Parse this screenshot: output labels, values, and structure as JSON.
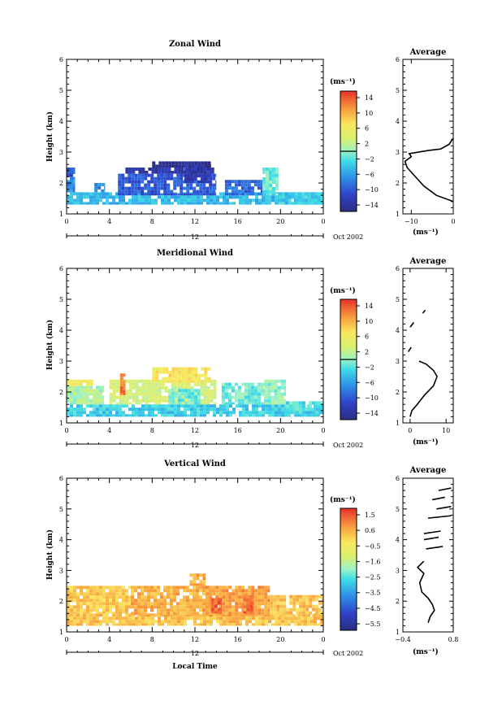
{
  "chart_data": [
    {
      "type": "heatmap",
      "title": "Zonal Wind",
      "ylabel": "Height (km)",
      "xlabel": "",
      "ylim": [
        1,
        6
      ],
      "yticks": [
        "1",
        "2",
        "3",
        "4",
        "5",
        "6"
      ],
      "xlim": [
        0,
        24
      ],
      "xticks": [
        "0",
        "4",
        "8",
        "12",
        "16",
        "20",
        "0"
      ],
      "date_label": "12",
      "month_label": "Oct 2002",
      "colorbar": {
        "unit": "(ms⁻¹)",
        "ticks": [
          "14",
          "10",
          "6",
          "2",
          "−2",
          "−6",
          "−10",
          "−14"
        ],
        "zero_line": true
      },
      "cells": [
        {
          "t0": 0,
          "t1": 24,
          "h0": 1.3,
          "h1": 1.7,
          "v": -4
        },
        {
          "t0": 0,
          "t1": 0.8,
          "h0": 1.7,
          "h1": 2.2,
          "v": -6
        },
        {
          "t0": 0,
          "t1": 0.8,
          "h0": 2.2,
          "h1": 2.5,
          "v": -9
        },
        {
          "t0": 2.6,
          "t1": 3.6,
          "h0": 1.7,
          "h1": 2.0,
          "v": -6
        },
        {
          "t0": 4.8,
          "t1": 14.0,
          "h0": 1.6,
          "h1": 2.3,
          "v": -9
        },
        {
          "t0": 5.5,
          "t1": 13.8,
          "h0": 2.3,
          "h1": 2.5,
          "v": -12
        },
        {
          "t0": 8.0,
          "t1": 13.5,
          "h0": 2.5,
          "h1": 2.7,
          "v": -14
        },
        {
          "t0": 11.0,
          "t1": 13.5,
          "h0": 2.0,
          "h1": 2.6,
          "v": -12
        },
        {
          "t0": 14.8,
          "t1": 18.3,
          "h0": 1.6,
          "h1": 2.1,
          "v": -8
        },
        {
          "t0": 18.3,
          "t1": 19.8,
          "h0": 1.6,
          "h1": 2.5,
          "v": -1
        },
        {
          "t0": 19.8,
          "t1": 24,
          "h0": 1.3,
          "h1": 1.7,
          "v": -3
        }
      ],
      "average": {
        "title": "Average",
        "unit": "(ms⁻¹)",
        "xlim": [
          -12,
          0
        ],
        "xticks": [
          "−10",
          "0"
        ],
        "profile": [
          {
            "h": 1.4,
            "v": 0
          },
          {
            "h": 1.6,
            "v": -4
          },
          {
            "h": 1.9,
            "v": -7
          },
          {
            "h": 2.2,
            "v": -9
          },
          {
            "h": 2.5,
            "v": -11
          },
          {
            "h": 2.7,
            "v": -11.5
          },
          {
            "h": 2.85,
            "v": -10
          },
          {
            "h": 2.95,
            "v": -10.5
          },
          {
            "h": 3.05,
            "v": -6
          },
          {
            "h": 3.1,
            "v": -3
          },
          {
            "h": 3.25,
            "v": -1
          },
          {
            "h": 3.45,
            "v": 0
          }
        ]
      }
    },
    {
      "type": "heatmap",
      "title": "Meridional Wind",
      "ylabel": "Height (km)",
      "xlabel": "",
      "ylim": [
        1,
        6
      ],
      "yticks": [
        "1",
        "2",
        "3",
        "4",
        "5",
        "6"
      ],
      "xlim": [
        0,
        24
      ],
      "xticks": [
        "0",
        "4",
        "8",
        "12",
        "16",
        "20",
        "0"
      ],
      "date_label": "12",
      "month_label": "Oct 2002",
      "colorbar": {
        "unit": "(ms⁻¹)",
        "ticks": [
          "14",
          "10",
          "6",
          "2",
          "−2",
          "−6",
          "−10",
          "−14"
        ],
        "zero_line": true
      },
      "cells": [
        {
          "t0": 0,
          "t1": 24,
          "h0": 1.2,
          "h1": 1.6,
          "v": -3
        },
        {
          "t0": 0,
          "t1": 3.5,
          "h0": 1.6,
          "h1": 2.2,
          "v": 1
        },
        {
          "t0": 0,
          "t1": 2.5,
          "h0": 2.2,
          "h1": 2.4,
          "v": 5
        },
        {
          "t0": 4.0,
          "t1": 14.0,
          "h0": 1.6,
          "h1": 2.4,
          "v": 3
        },
        {
          "t0": 5.0,
          "t1": 5.5,
          "h0": 1.9,
          "h1": 2.6,
          "v": 11
        },
        {
          "t0": 8.0,
          "t1": 13.5,
          "h0": 2.3,
          "h1": 2.8,
          "v": 6
        },
        {
          "t0": 9.5,
          "t1": 12.5,
          "h0": 1.6,
          "h1": 2.1,
          "v": -1
        },
        {
          "t0": 14.5,
          "t1": 18.5,
          "h0": 1.6,
          "h1": 2.3,
          "v": -1
        },
        {
          "t0": 18.5,
          "t1": 20.5,
          "h0": 1.6,
          "h1": 2.4,
          "v": 0
        },
        {
          "t0": 20.5,
          "t1": 24,
          "h0": 1.3,
          "h1": 1.7,
          "v": -2
        }
      ],
      "average": {
        "title": "Average",
        "unit": "(ms⁻¹)",
        "xlim": [
          -2,
          12
        ],
        "xticks": [
          "0",
          "10"
        ],
        "profile": [
          {
            "h": 1.2,
            "v": 0
          },
          {
            "h": 1.4,
            "v": 0.5
          },
          {
            "h": 1.6,
            "v": 2
          },
          {
            "h": 1.9,
            "v": 4
          },
          {
            "h": 2.2,
            "v": 6.5
          },
          {
            "h": 2.5,
            "v": 7.5
          },
          {
            "h": 2.7,
            "v": 6.5
          },
          {
            "h": 2.9,
            "v": 4.5
          },
          {
            "h": 3.0,
            "v": 2.5
          }
        ],
        "profile2": [
          {
            "h": 3.3,
            "v": -0.5
          },
          {
            "h": 3.45,
            "v": 0.3
          }
        ],
        "profile3": [
          {
            "h": 4.1,
            "v": 0
          },
          {
            "h": 4.25,
            "v": 1.0
          }
        ],
        "profile4": [
          {
            "h": 4.55,
            "v": 3.5
          },
          {
            "h": 4.65,
            "v": 4.2
          }
        ]
      }
    },
    {
      "type": "heatmap",
      "title": "Vertical Wind",
      "ylabel": "Height (km)",
      "xlabel": "Local Time",
      "ylim": [
        1,
        6
      ],
      "yticks": [
        "1",
        "2",
        "3",
        "4",
        "5",
        "6"
      ],
      "xlim": [
        0,
        24
      ],
      "xticks": [
        "0",
        "4",
        "8",
        "12",
        "16",
        "20",
        "0"
      ],
      "date_label": "12",
      "month_label": "Oct 2002",
      "colorbar": {
        "unit": "(ms⁻¹)",
        "ticks": [
          "1.5",
          "0.6",
          "−0.5",
          "−1.6",
          "−2.5",
          "−3.5",
          "−4.5",
          "−5.5"
        ],
        "zero_line": false
      },
      "cells": [
        {
          "t0": 0,
          "t1": 24,
          "h0": 1.2,
          "h1": 1.6,
          "v": 0.3
        },
        {
          "t0": 0,
          "t1": 6.0,
          "h0": 1.6,
          "h1": 2.5,
          "v": 0.2
        },
        {
          "t0": 6.0,
          "t1": 13.5,
          "h0": 1.5,
          "h1": 2.5,
          "v": 0.5
        },
        {
          "t0": 11.5,
          "t1": 13.0,
          "h0": 2.5,
          "h1": 2.9,
          "v": 0.6
        },
        {
          "t0": 13.0,
          "t1": 19.0,
          "h0": 1.5,
          "h1": 2.5,
          "v": 0.7
        },
        {
          "t0": 13.5,
          "t1": 14.5,
          "h0": 1.6,
          "h1": 2.1,
          "v": 1.4
        },
        {
          "t0": 16.5,
          "t1": 17.5,
          "h0": 1.6,
          "h1": 2.2,
          "v": 1.4
        },
        {
          "t0": 19.0,
          "t1": 24,
          "h0": 1.5,
          "h1": 2.2,
          "v": 0.3
        }
      ],
      "average": {
        "title": "Average",
        "unit": "(ms⁻¹)",
        "xlim": [
          -0.4,
          0.8
        ],
        "xticks": [
          "−0.4",
          "0.8"
        ],
        "profile": [
          {
            "h": 1.3,
            "v": 0.2
          },
          {
            "h": 1.5,
            "v": 0.25
          },
          {
            "h": 1.7,
            "v": 0.35
          },
          {
            "h": 1.9,
            "v": 0.3
          },
          {
            "h": 2.1,
            "v": 0.2
          },
          {
            "h": 2.3,
            "v": 0.05
          },
          {
            "h": 2.6,
            "v": 0.0
          },
          {
            "h": 2.9,
            "v": 0.1
          },
          {
            "h": 3.1,
            "v": -0.05
          },
          {
            "h": 3.3,
            "v": 0.1
          }
        ]
      }
    }
  ]
}
